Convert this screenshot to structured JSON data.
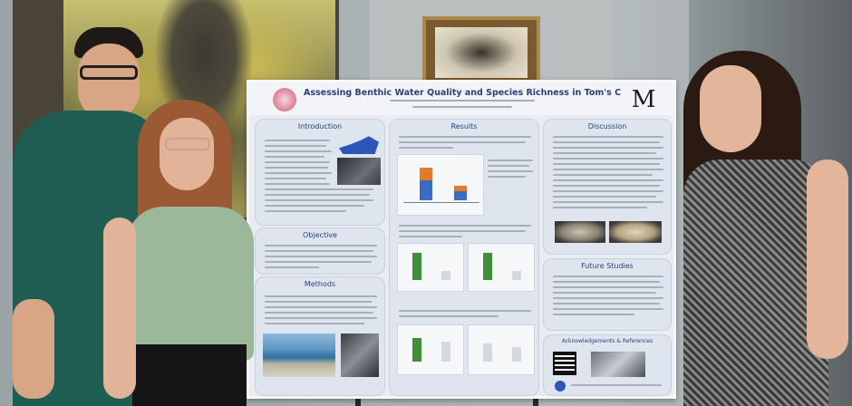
{
  "poster": {
    "title": "Assessing Benthic Water Quality and Species Richness in Tom's Cove, VA",
    "sections": {
      "introduction": "Introduction",
      "objective": "Objective",
      "methods": "Methods",
      "results": "Results",
      "discussion": "Discussion",
      "future_studies": "Future Studies",
      "acknowledgements": "Acknowledgements & References"
    }
  },
  "colors": {
    "poster_title": "#2b3f7a",
    "panel_bg": "#dfe5ee",
    "bar_orange": "#e07b2a",
    "bar_blue": "#3b6cc4",
    "bar_green": "#3f8f3a"
  }
}
